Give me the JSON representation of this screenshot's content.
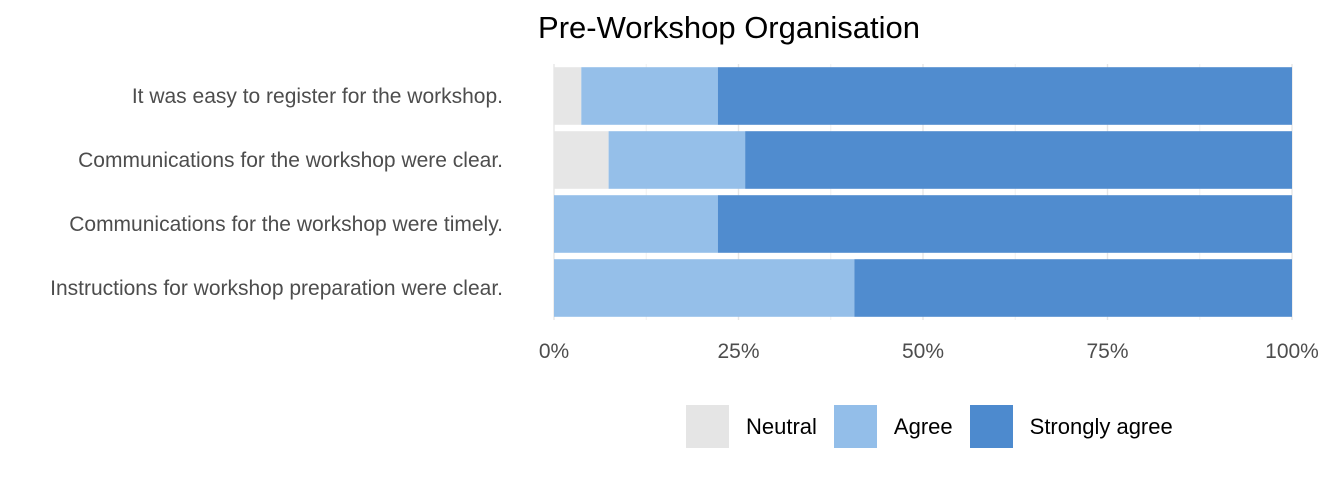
{
  "chart_data": {
    "type": "bar",
    "orientation": "horizontal",
    "stacked": true,
    "title": "Pre-Workshop Organisation",
    "xlabel": "",
    "ylabel": "",
    "categories": [
      "It was easy to register for the workshop.",
      "Communications for the workshop were clear.",
      "Communications for the workshop were timely.",
      "Instructions for workshop preparation were clear."
    ],
    "series": [
      {
        "name": "Neutral",
        "color": "#e5e5e5",
        "values": [
          3.7,
          7.4,
          0,
          0
        ]
      },
      {
        "name": "Agree",
        "color": "#93bee9",
        "values": [
          18.5,
          18.5,
          22.2,
          40.7
        ]
      },
      {
        "name": "Strongly agree",
        "color": "#4d8ace",
        "values": [
          77.8,
          74.1,
          77.8,
          59.3
        ]
      }
    ],
    "xlim": [
      0,
      100
    ],
    "x_ticks": [
      "0%",
      "25%",
      "50%",
      "75%",
      "100%"
    ],
    "grid": true,
    "legend_position": "bottom"
  }
}
